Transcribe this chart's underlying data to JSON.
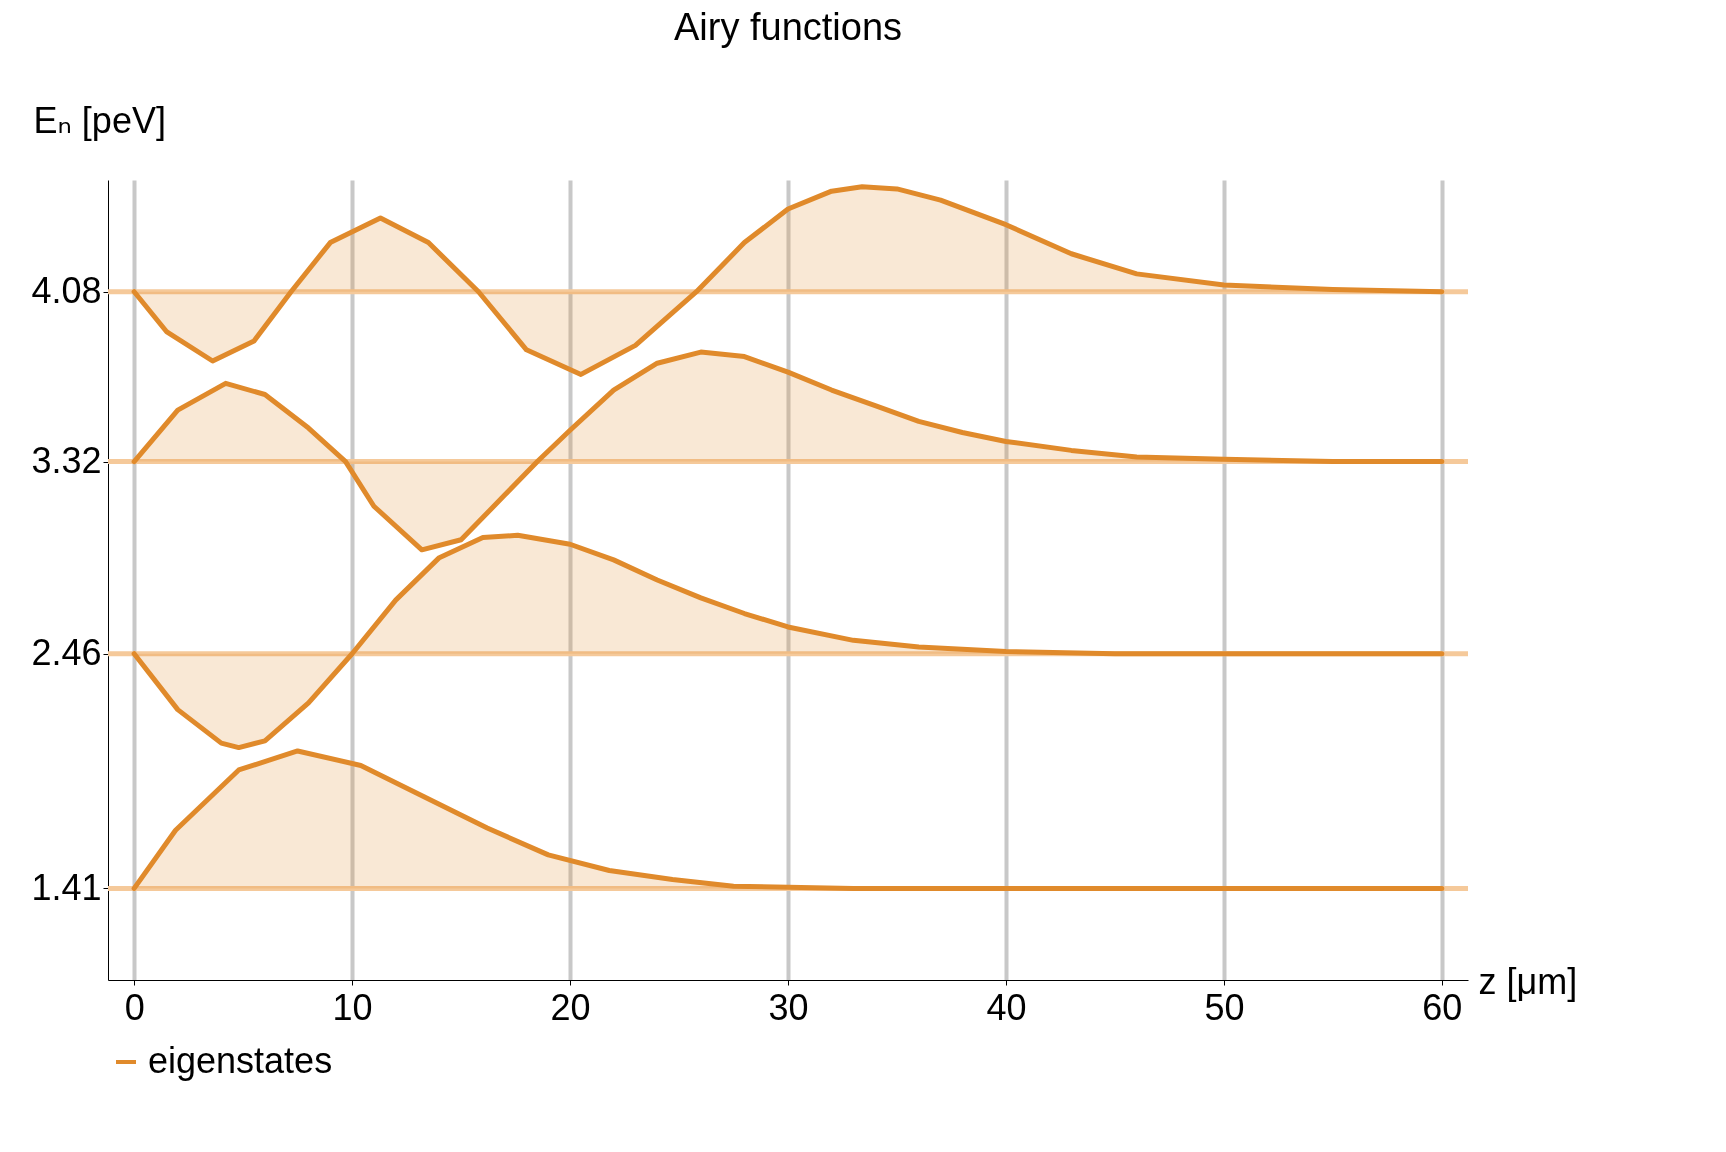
{
  "chart_data": {
    "type": "area",
    "title": "Airy functions",
    "xlabel": "z [μm]",
    "ylabel": "Eₙ [peV]",
    "xlim": [
      -1.2,
      61.2
    ],
    "xticks": [
      0,
      10,
      20,
      30,
      40,
      50,
      60
    ],
    "ylim": [
      1.0,
      4.58
    ],
    "yticks": [
      1.41,
      2.46,
      3.32,
      4.08
    ],
    "grid": "x",
    "legend": "bottom",
    "ref_lines": [
      {
        "axis": "y",
        "value": 1.41,
        "color": "#f5c99a"
      },
      {
        "axis": "y",
        "value": 2.46,
        "color": "#f5c99a"
      },
      {
        "axis": "y",
        "value": 3.32,
        "color": "#f5c99a"
      },
      {
        "axis": "y",
        "value": 4.08,
        "color": "#f5c99a"
      }
    ],
    "series": [
      {
        "name": "eigenstates",
        "color": "#e08a2b",
        "x": [
          0,
          1.9,
          4.8,
          7.5,
          10.4,
          13.3,
          16.2,
          19,
          21.8,
          24.7,
          27.5,
          33,
          40,
          50,
          60
        ],
        "values": [
          1.41,
          1.67,
          1.94,
          2.025,
          1.96,
          1.82,
          1.68,
          1.56,
          1.49,
          1.45,
          1.42,
          1.41,
          1.41,
          1.41,
          1.41
        ]
      },
      {
        "color": "#e08a2b",
        "x": [
          0,
          2,
          4,
          4.8,
          6,
          8,
          10,
          12,
          14,
          16,
          17.6,
          20,
          22,
          24,
          26,
          28,
          30,
          33,
          36,
          40,
          45,
          60
        ],
        "values": [
          2.46,
          2.21,
          2.06,
          2.04,
          2.07,
          2.24,
          2.46,
          2.7,
          2.89,
          2.98,
          2.99,
          2.95,
          2.88,
          2.79,
          2.71,
          2.64,
          2.58,
          2.52,
          2.49,
          2.47,
          2.46,
          2.46
        ]
      },
      {
        "color": "#e08a2b",
        "x": [
          0,
          2,
          4.2,
          6,
          8,
          9.7,
          11,
          13.2,
          15,
          17,
          18.5,
          20,
          22,
          24,
          26,
          28,
          30,
          32,
          34,
          36,
          38,
          40,
          43,
          46,
          50,
          55,
          60
        ],
        "values": [
          3.32,
          3.55,
          3.67,
          3.62,
          3.47,
          3.32,
          3.12,
          2.925,
          2.97,
          3.17,
          3.32,
          3.46,
          3.64,
          3.76,
          3.81,
          3.79,
          3.72,
          3.64,
          3.57,
          3.5,
          3.45,
          3.41,
          3.37,
          3.34,
          3.33,
          3.32,
          3.32
        ]
      },
      {
        "color": "#e08a2b",
        "x": [
          0,
          1.5,
          3.6,
          5.5,
          7.2,
          9,
          11.3,
          13.5,
          15.8,
          18,
          20.5,
          23,
          25.8,
          28,
          30,
          32,
          33.4,
          35,
          37,
          40,
          43,
          46,
          50,
          55,
          60
        ],
        "values": [
          4.08,
          3.9,
          3.77,
          3.86,
          4.08,
          4.3,
          4.41,
          4.3,
          4.08,
          3.82,
          3.71,
          3.84,
          4.08,
          4.3,
          4.45,
          4.53,
          4.55,
          4.54,
          4.49,
          4.38,
          4.25,
          4.16,
          4.11,
          4.09,
          4.08
        ]
      }
    ]
  }
}
